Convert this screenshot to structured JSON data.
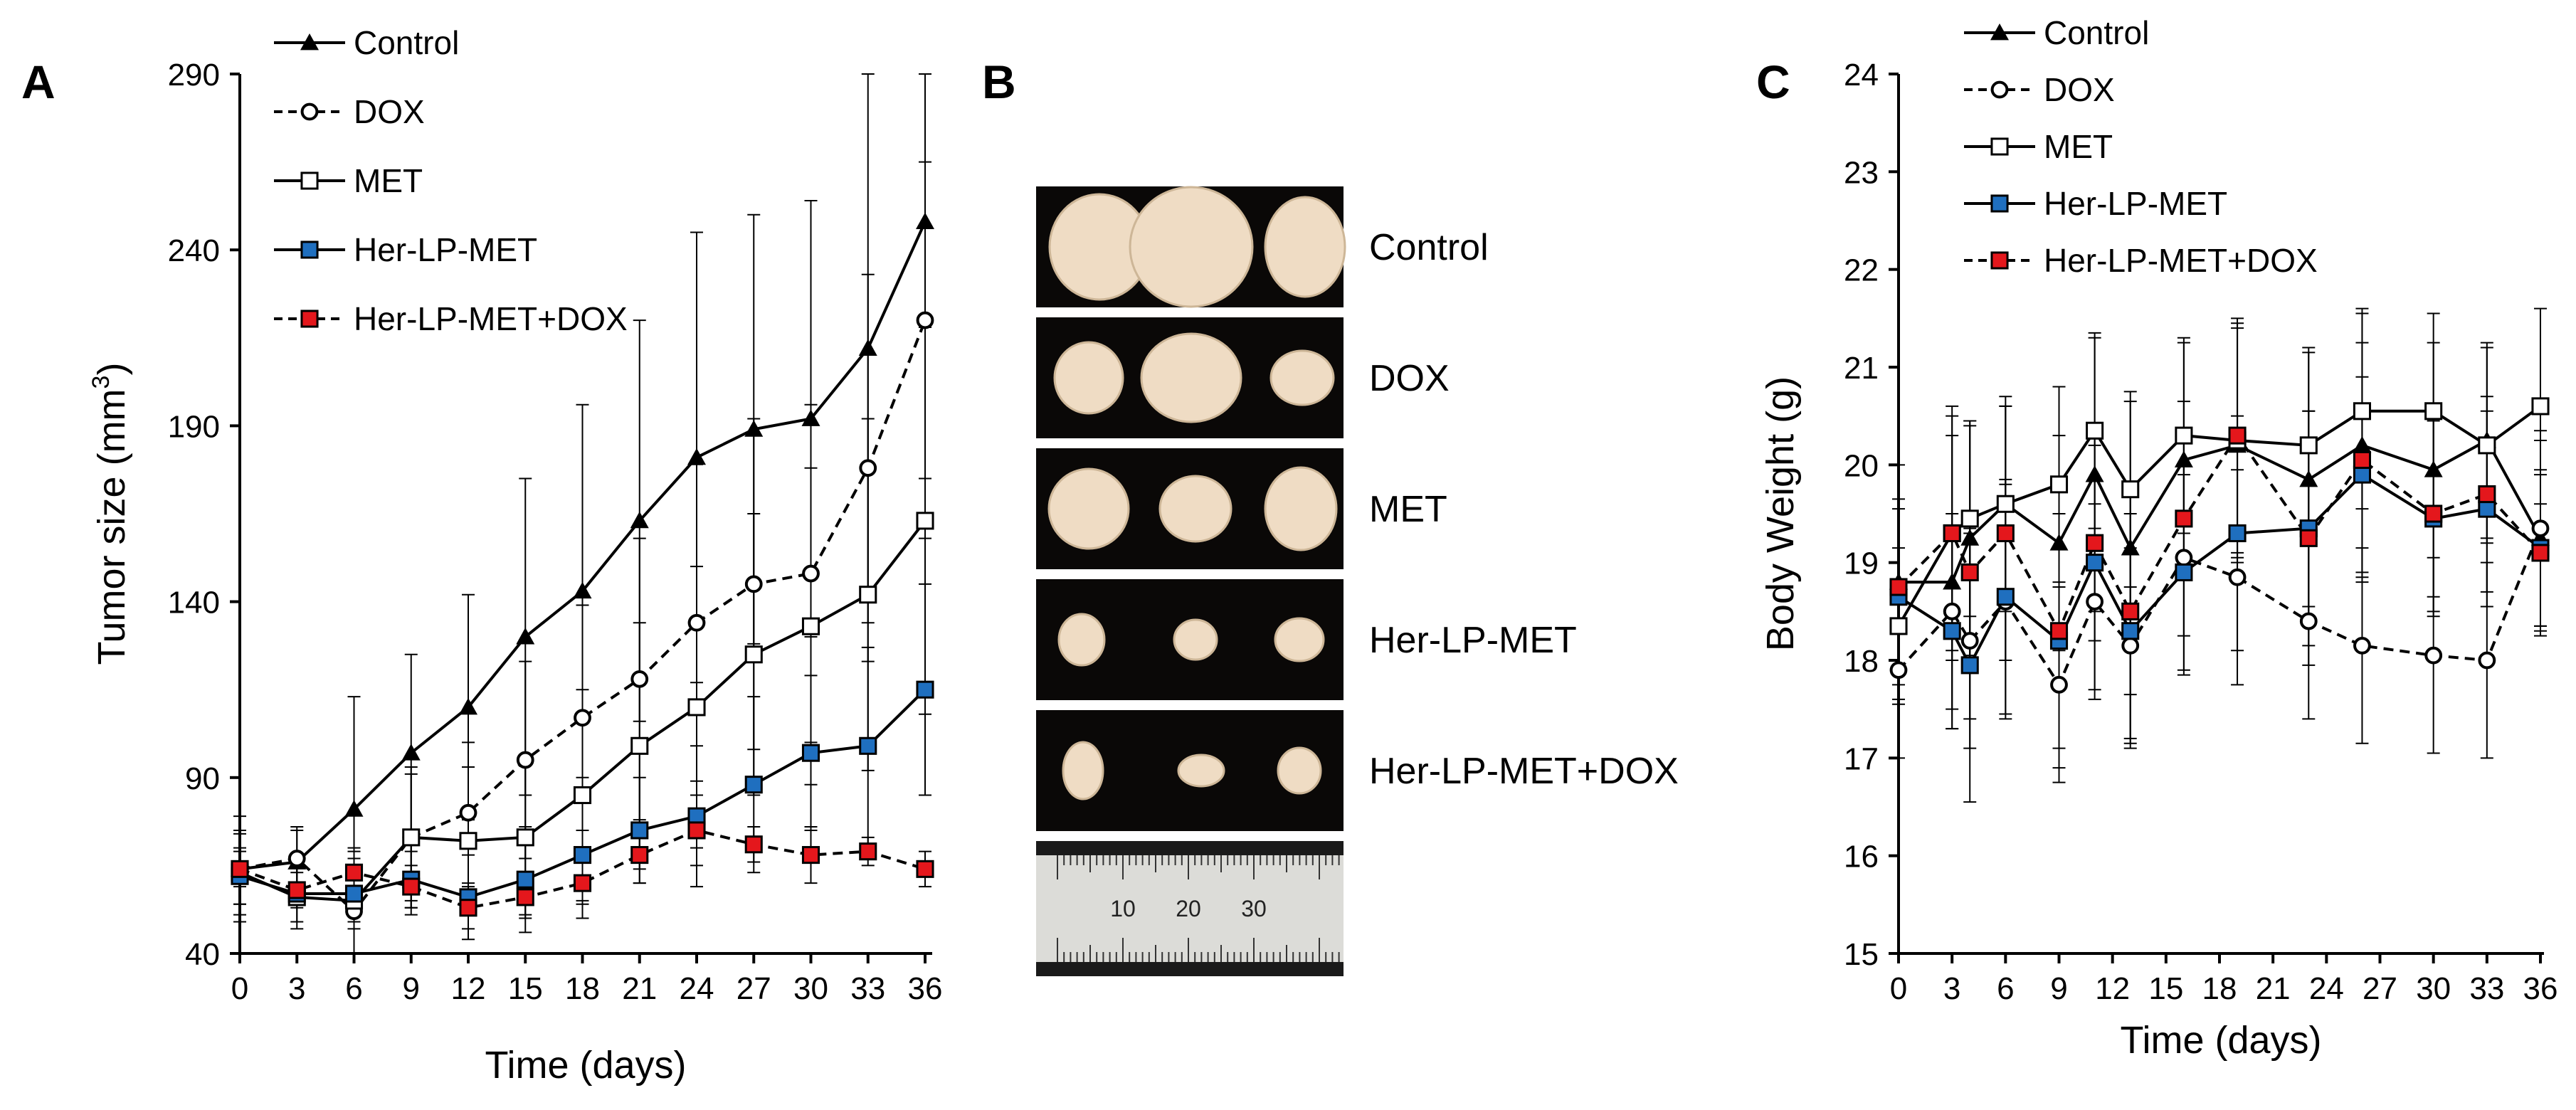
{
  "panel_labels": {
    "a": "A",
    "b": "B",
    "c": "C"
  },
  "legend": [
    "Control",
    "DOX",
    "MET",
    "Her-LP-MET",
    "Her-LP-MET+DOX"
  ],
  "colors": {
    "blue": "#1f6fbf",
    "red": "#e4171c",
    "black": "#000000",
    "white": "#ffffff",
    "photo_bg": "#0a0807"
  },
  "photo_panel": {
    "rows": [
      "Control",
      "DOX",
      "MET",
      "Her-LP-MET",
      "Her-LP-MET+DOX"
    ],
    "ruler_ticks": [
      "10",
      "20",
      "30"
    ]
  },
  "chart_data": [
    {
      "type": "line",
      "title": "",
      "xlabel": "Time (days)",
      "ylabel": "Tumor size (mm",
      "ylabel_sup": "3",
      "ylabel_end": ")",
      "x": [
        0,
        3,
        6,
        9,
        12,
        15,
        18,
        21,
        24,
        27,
        30,
        33,
        36
      ],
      "xlim": [
        0,
        36
      ],
      "ylim": [
        40,
        290
      ],
      "yticks": [
        40,
        90,
        140,
        190,
        240,
        290
      ],
      "series": [
        {
          "name": "Control",
          "marker": "triangle",
          "dashed": false,
          "values": [
            64,
            66,
            81,
            97,
            110,
            130,
            143,
            163,
            181,
            189,
            192,
            212,
            248
          ],
          "err": [
            15,
            10,
            32,
            28,
            32,
            45,
            53,
            57,
            64,
            61,
            62,
            78,
            90
          ]
        },
        {
          "name": "DOX",
          "marker": "circle",
          "dashed": true,
          "values": [
            64,
            67,
            52,
            73,
            80,
            95,
            107,
            118,
            134,
            145,
            148,
            178,
            220
          ],
          "err": [
            10,
            8,
            12,
            18,
            20,
            28,
            32,
            40,
            45,
            47,
            48,
            55,
            45
          ]
        },
        {
          "name": "MET",
          "marker": "square_open",
          "dashed": false,
          "values": [
            63,
            56,
            55,
            73,
            72,
            73,
            85,
            99,
            110,
            125,
            133,
            142,
            163
          ],
          "err": [
            12,
            9,
            15,
            20,
            21,
            23,
            30,
            35,
            40,
            40,
            45,
            50,
            55
          ]
        },
        {
          "name": "Her-LP-MET",
          "marker": "square_blue",
          "dashed": false,
          "values": [
            62,
            57,
            57,
            61,
            56,
            61,
            68,
            75,
            79,
            88,
            97,
            99,
            115
          ],
          "err": [
            8,
            8,
            10,
            10,
            12,
            15,
            18,
            15,
            20,
            25,
            22,
            28,
            30
          ]
        },
        {
          "name": "Her-LP-MET+DOX",
          "marker": "square_red",
          "dashed": true,
          "values": [
            64,
            58,
            63,
            59,
            53,
            56,
            60,
            68,
            75,
            71,
            68,
            69,
            64
          ],
          "err": [
            5,
            5,
            6,
            6,
            6,
            5,
            6,
            8,
            10,
            5,
            8,
            4,
            5
          ]
        }
      ]
    },
    {
      "type": "line",
      "title": "",
      "xlabel": "Time (days)",
      "ylabel": "Body Weight (g)",
      "x_ticks": [
        0,
        3,
        6,
        9,
        12,
        15,
        18,
        21,
        24,
        27,
        30,
        33,
        36
      ],
      "xlim": [
        0,
        36
      ],
      "ylim": [
        15,
        24
      ],
      "yticks": [
        15,
        16,
        17,
        18,
        19,
        20,
        21,
        22,
        23,
        24
      ],
      "series": [
        {
          "name": "Control",
          "marker": "triangle",
          "dashed": false,
          "x": [
            0,
            3,
            4,
            6,
            9,
            11,
            13,
            16,
            19,
            23,
            26,
            30,
            33,
            36
          ],
          "values": [
            18.8,
            18.8,
            19.25,
            19.6,
            19.2,
            19.9,
            19.15,
            20.05,
            20.2,
            19.85,
            20.2,
            19.95,
            20.25,
            19.25
          ],
          "err": [
            1.2,
            1.5,
            1.2,
            1.0,
            1.1,
            1.4,
            1.5,
            1.2,
            1.2,
            1.3,
            1.4,
            1.3,
            1.0,
            1.0
          ]
        },
        {
          "name": "DOX",
          "marker": "circle",
          "dashed": true,
          "x": [
            0,
            3,
            4,
            6,
            9,
            11,
            13,
            16,
            19,
            23,
            26,
            30,
            33,
            36
          ],
          "values": [
            17.9,
            18.5,
            18.2,
            18.6,
            17.75,
            18.6,
            18.15,
            19.05,
            18.85,
            18.4,
            18.15,
            18.05,
            18.0,
            19.35
          ],
          "err": [
            0.9,
            1.0,
            1.1,
            1.2,
            1.0,
            1.0,
            1.0,
            1.2,
            1.1,
            1.0,
            1.0,
            1.0,
            1.0,
            1.0
          ]
        },
        {
          "name": "MET",
          "marker": "square_open",
          "dashed": false,
          "x": [
            0,
            3,
            4,
            6,
            9,
            11,
            13,
            16,
            19,
            23,
            26,
            30,
            33,
            36
          ],
          "values": [
            18.35,
            19.3,
            19.45,
            19.6,
            19.8,
            20.35,
            19.75,
            20.3,
            20.25,
            20.2,
            20.55,
            20.55,
            20.2,
            20.6
          ],
          "err": [
            0.8,
            1.2,
            1.0,
            1.1,
            1.0,
            1.0,
            1.0,
            1.0,
            1.2,
            1.0,
            1.0,
            1.0,
            1.0,
            1.0
          ]
        },
        {
          "name": "Her-LP-MET",
          "marker": "square_blue",
          "dashed": false,
          "x": [
            0,
            3,
            4,
            6,
            9,
            11,
            13,
            16,
            19,
            23,
            26,
            30,
            33,
            36
          ],
          "values": [
            18.65,
            18.3,
            17.95,
            18.65,
            18.2,
            19.0,
            18.3,
            18.9,
            19.3,
            19.35,
            19.9,
            19.45,
            19.55,
            19.15
          ],
          "err": [
            0.9,
            1.0,
            1.4,
            1.2,
            1.3,
            1.3,
            1.2,
            1.0,
            1.2,
            1.2,
            1.0,
            1.0,
            1.0,
            0.8
          ]
        },
        {
          "name": "Her-LP-MET+DOX",
          "marker": "square_red",
          "dashed": true,
          "x": [
            0,
            3,
            4,
            6,
            9,
            11,
            13,
            16,
            19,
            23,
            26,
            30,
            33,
            36
          ],
          "values": [
            18.75,
            19.3,
            18.9,
            19.3,
            18.3,
            19.2,
            18.5,
            19.45,
            20.3,
            19.25,
            20.05,
            19.5,
            19.7,
            19.1
          ],
          "err": [
            0.9,
            1.3,
            1.5,
            1.3,
            1.2,
            1.0,
            1.3,
            1.2,
            1.2,
            1.3,
            1.2,
            1.0,
            1.0,
            0.8
          ]
        }
      ]
    }
  ]
}
